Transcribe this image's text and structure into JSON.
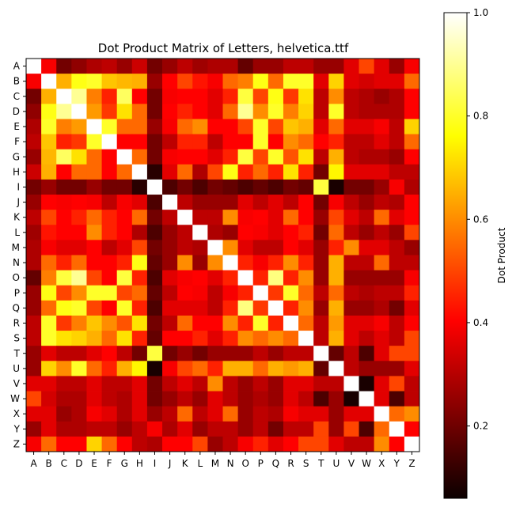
{
  "chart_data": {
    "type": "heatmap",
    "title": "Dot Product Matrix of Letters, helvetica.ttf",
    "colormap": "hot",
    "colorbar_label": "Dot Product",
    "colorbar_range": [
      0.06,
      1.0
    ],
    "colorbar_ticks": [
      "0.2",
      "0.4",
      "0.6",
      "0.8",
      "1.0"
    ],
    "x_categories": [
      "A",
      "B",
      "C",
      "D",
      "E",
      "F",
      "G",
      "H",
      "I",
      "J",
      "K",
      "L",
      "M",
      "N",
      "O",
      "P",
      "Q",
      "R",
      "S",
      "T",
      "U",
      "V",
      "W",
      "X",
      "Y",
      "Z"
    ],
    "y_categories": [
      "A",
      "B",
      "C",
      "D",
      "E",
      "F",
      "G",
      "H",
      "I",
      "J",
      "K",
      "L",
      "M",
      "N",
      "O",
      "P",
      "Q",
      "R",
      "S",
      "T",
      "U",
      "V",
      "W",
      "X",
      "Y",
      "Z"
    ],
    "values": [
      [
        1.0,
        0.38,
        0.2,
        0.24,
        0.28,
        0.3,
        0.25,
        0.32,
        0.2,
        0.25,
        0.3,
        0.26,
        0.28,
        0.28,
        0.18,
        0.25,
        0.25,
        0.3,
        0.3,
        0.25,
        0.25,
        0.35,
        0.5,
        0.35,
        0.25,
        0.38
      ],
      [
        0.38,
        1.0,
        0.65,
        0.78,
        0.8,
        0.68,
        0.66,
        0.65,
        0.25,
        0.4,
        0.5,
        0.43,
        0.38,
        0.55,
        0.58,
        0.78,
        0.55,
        0.8,
        0.8,
        0.35,
        0.7,
        0.35,
        0.33,
        0.35,
        0.35,
        0.55
      ],
      [
        0.2,
        0.65,
        1.0,
        0.9,
        0.58,
        0.45,
        0.85,
        0.4,
        0.2,
        0.38,
        0.4,
        0.4,
        0.35,
        0.45,
        0.82,
        0.5,
        0.78,
        0.48,
        0.72,
        0.3,
        0.6,
        0.3,
        0.28,
        0.25,
        0.28,
        0.4
      ],
      [
        0.24,
        0.78,
        0.9,
        1.0,
        0.62,
        0.48,
        0.72,
        0.55,
        0.2,
        0.4,
        0.45,
        0.4,
        0.35,
        0.55,
        0.9,
        0.6,
        0.8,
        0.58,
        0.7,
        0.3,
        0.8,
        0.3,
        0.28,
        0.28,
        0.28,
        0.4
      ],
      [
        0.28,
        0.8,
        0.58,
        0.62,
        1.0,
        0.8,
        0.55,
        0.55,
        0.25,
        0.38,
        0.55,
        0.6,
        0.4,
        0.4,
        0.5,
        0.8,
        0.5,
        0.68,
        0.65,
        0.35,
        0.55,
        0.35,
        0.35,
        0.38,
        0.3,
        0.7
      ],
      [
        0.3,
        0.68,
        0.45,
        0.48,
        0.8,
        1.0,
        0.4,
        0.4,
        0.2,
        0.3,
        0.45,
        0.45,
        0.3,
        0.4,
        0.4,
        0.8,
        0.4,
        0.6,
        0.55,
        0.4,
        0.45,
        0.3,
        0.3,
        0.35,
        0.3,
        0.55
      ],
      [
        0.25,
        0.66,
        0.85,
        0.72,
        0.55,
        0.4,
        1.0,
        0.55,
        0.2,
        0.38,
        0.4,
        0.4,
        0.35,
        0.45,
        0.82,
        0.5,
        0.8,
        0.52,
        0.72,
        0.3,
        0.65,
        0.3,
        0.28,
        0.28,
        0.25,
        0.4
      ],
      [
        0.32,
        0.65,
        0.4,
        0.55,
        0.55,
        0.4,
        0.55,
        1.0,
        0.1,
        0.35,
        0.55,
        0.28,
        0.5,
        0.78,
        0.45,
        0.55,
        0.45,
        0.72,
        0.45,
        0.2,
        0.75,
        0.35,
        0.35,
        0.35,
        0.3,
        0.3
      ],
      [
        0.2,
        0.25,
        0.2,
        0.2,
        0.25,
        0.2,
        0.2,
        0.1,
        1.0,
        0.15,
        0.2,
        0.15,
        0.2,
        0.18,
        0.15,
        0.18,
        0.15,
        0.2,
        0.18,
        0.82,
        0.08,
        0.2,
        0.2,
        0.25,
        0.38,
        0.28
      ],
      [
        0.25,
        0.4,
        0.38,
        0.4,
        0.38,
        0.3,
        0.38,
        0.35,
        0.15,
        1.0,
        0.3,
        0.25,
        0.25,
        0.25,
        0.35,
        0.3,
        0.35,
        0.3,
        0.4,
        0.2,
        0.38,
        0.3,
        0.25,
        0.3,
        0.28,
        0.4
      ],
      [
        0.3,
        0.5,
        0.4,
        0.45,
        0.55,
        0.45,
        0.4,
        0.55,
        0.2,
        0.3,
        1.0,
        0.3,
        0.3,
        0.6,
        0.38,
        0.4,
        0.35,
        0.55,
        0.4,
        0.25,
        0.5,
        0.35,
        0.3,
        0.55,
        0.35,
        0.4
      ],
      [
        0.26,
        0.43,
        0.4,
        0.4,
        0.6,
        0.45,
        0.4,
        0.28,
        0.15,
        0.25,
        0.3,
        1.0,
        0.28,
        0.25,
        0.4,
        0.38,
        0.35,
        0.4,
        0.45,
        0.2,
        0.55,
        0.3,
        0.25,
        0.3,
        0.25,
        0.5
      ],
      [
        0.28,
        0.38,
        0.35,
        0.35,
        0.4,
        0.3,
        0.35,
        0.5,
        0.2,
        0.25,
        0.3,
        0.28,
        1.0,
        0.6,
        0.35,
        0.3,
        0.3,
        0.4,
        0.35,
        0.25,
        0.45,
        0.6,
        0.35,
        0.35,
        0.3,
        0.25
      ],
      [
        0.28,
        0.55,
        0.45,
        0.55,
        0.4,
        0.4,
        0.45,
        0.78,
        0.18,
        0.25,
        0.6,
        0.25,
        0.6,
        1.0,
        0.45,
        0.38,
        0.45,
        0.6,
        0.45,
        0.25,
        0.65,
        0.3,
        0.3,
        0.55,
        0.3,
        0.3
      ],
      [
        0.18,
        0.58,
        0.82,
        0.9,
        0.5,
        0.4,
        0.82,
        0.45,
        0.15,
        0.35,
        0.38,
        0.4,
        0.35,
        0.45,
        1.0,
        0.45,
        0.88,
        0.45,
        0.6,
        0.25,
        0.65,
        0.25,
        0.25,
        0.25,
        0.25,
        0.38
      ],
      [
        0.25,
        0.78,
        0.5,
        0.6,
        0.8,
        0.8,
        0.5,
        0.55,
        0.18,
        0.3,
        0.4,
        0.38,
        0.3,
        0.38,
        0.45,
        1.0,
        0.48,
        0.8,
        0.55,
        0.3,
        0.55,
        0.3,
        0.28,
        0.3,
        0.3,
        0.45
      ],
      [
        0.25,
        0.55,
        0.78,
        0.8,
        0.5,
        0.4,
        0.8,
        0.45,
        0.15,
        0.35,
        0.35,
        0.35,
        0.3,
        0.45,
        0.88,
        0.48,
        1.0,
        0.45,
        0.6,
        0.25,
        0.65,
        0.25,
        0.25,
        0.28,
        0.2,
        0.35
      ],
      [
        0.3,
        0.8,
        0.48,
        0.58,
        0.68,
        0.6,
        0.52,
        0.72,
        0.2,
        0.3,
        0.55,
        0.4,
        0.4,
        0.6,
        0.45,
        0.8,
        0.45,
        1.0,
        0.55,
        0.3,
        0.62,
        0.35,
        0.35,
        0.38,
        0.3,
        0.4
      ],
      [
        0.3,
        0.8,
        0.72,
        0.7,
        0.65,
        0.55,
        0.72,
        0.45,
        0.18,
        0.4,
        0.4,
        0.45,
        0.35,
        0.45,
        0.6,
        0.55,
        0.6,
        0.55,
        1.0,
        0.3,
        0.65,
        0.35,
        0.3,
        0.35,
        0.3,
        0.5
      ],
      [
        0.25,
        0.35,
        0.3,
        0.3,
        0.35,
        0.4,
        0.3,
        0.2,
        0.82,
        0.2,
        0.25,
        0.2,
        0.25,
        0.25,
        0.25,
        0.3,
        0.25,
        0.3,
        0.3,
        1.0,
        0.18,
        0.3,
        0.15,
        0.35,
        0.5,
        0.5
      ],
      [
        0.25,
        0.7,
        0.6,
        0.8,
        0.55,
        0.45,
        0.65,
        0.75,
        0.08,
        0.38,
        0.5,
        0.55,
        0.45,
        0.65,
        0.65,
        0.55,
        0.65,
        0.62,
        0.65,
        0.18,
        1.0,
        0.3,
        0.25,
        0.25,
        0.25,
        0.35
      ],
      [
        0.35,
        0.35,
        0.3,
        0.3,
        0.35,
        0.3,
        0.3,
        0.35,
        0.2,
        0.3,
        0.35,
        0.3,
        0.6,
        0.3,
        0.25,
        0.3,
        0.25,
        0.35,
        0.35,
        0.3,
        0.3,
        1.0,
        0.08,
        0.35,
        0.5,
        0.3
      ],
      [
        0.5,
        0.33,
        0.28,
        0.28,
        0.35,
        0.3,
        0.28,
        0.35,
        0.2,
        0.25,
        0.3,
        0.25,
        0.35,
        0.3,
        0.25,
        0.28,
        0.25,
        0.35,
        0.3,
        0.15,
        0.25,
        0.08,
        1.0,
        0.35,
        0.15,
        0.3
      ],
      [
        0.35,
        0.35,
        0.25,
        0.28,
        0.38,
        0.35,
        0.28,
        0.35,
        0.25,
        0.3,
        0.55,
        0.3,
        0.35,
        0.55,
        0.25,
        0.3,
        0.28,
        0.38,
        0.35,
        0.35,
        0.25,
        0.35,
        0.35,
        1.0,
        0.55,
        0.6
      ],
      [
        0.25,
        0.35,
        0.28,
        0.28,
        0.3,
        0.3,
        0.25,
        0.3,
        0.38,
        0.28,
        0.35,
        0.25,
        0.3,
        0.3,
        0.25,
        0.3,
        0.2,
        0.3,
        0.3,
        0.5,
        0.25,
        0.5,
        0.15,
        0.55,
        1.0,
        0.4
      ],
      [
        0.38,
        0.55,
        0.4,
        0.4,
        0.7,
        0.55,
        0.4,
        0.3,
        0.28,
        0.4,
        0.4,
        0.5,
        0.25,
        0.3,
        0.38,
        0.45,
        0.35,
        0.4,
        0.5,
        0.5,
        0.35,
        0.3,
        0.3,
        0.6,
        0.4,
        1.0
      ]
    ]
  }
}
